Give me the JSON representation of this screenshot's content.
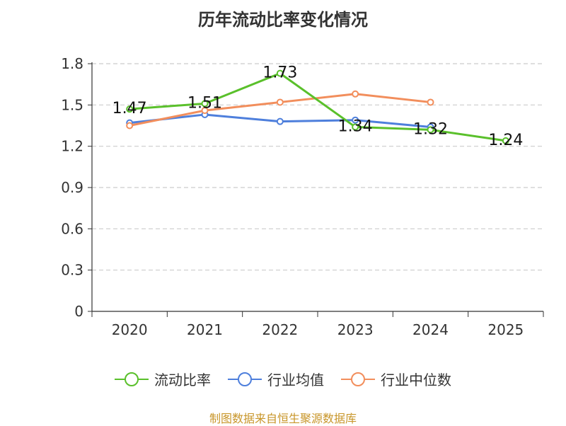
{
  "chart_data": {
    "type": "line",
    "title": "历年流动比率变化情况",
    "categories": [
      "2020",
      "2021",
      "2022",
      "2023",
      "2024",
      "2025"
    ],
    "yticks": [
      "0",
      "0.3",
      "0.6",
      "0.9",
      "1.2",
      "1.5",
      "1.8"
    ],
    "ylim": [
      0,
      1.8
    ],
    "grid": true,
    "legend_position": "bottom",
    "series": [
      {
        "name": "流动比率",
        "color": "#5ac02b",
        "values": [
          1.47,
          1.51,
          1.73,
          1.34,
          1.32,
          1.24
        ],
        "labels": [
          "1.47",
          "1.51",
          "1.73",
          "1.34",
          "1.32",
          "1.24"
        ]
      },
      {
        "name": "行业均值",
        "color": "#4e7fdc",
        "values": [
          1.37,
          1.43,
          1.38,
          1.39,
          1.34,
          null
        ]
      },
      {
        "name": "行业中位数",
        "color": "#f28e5c",
        "values": [
          1.35,
          1.46,
          1.52,
          1.58,
          1.52,
          null
        ]
      }
    ]
  },
  "source_text": "制图数据来自恒生聚源数据库"
}
